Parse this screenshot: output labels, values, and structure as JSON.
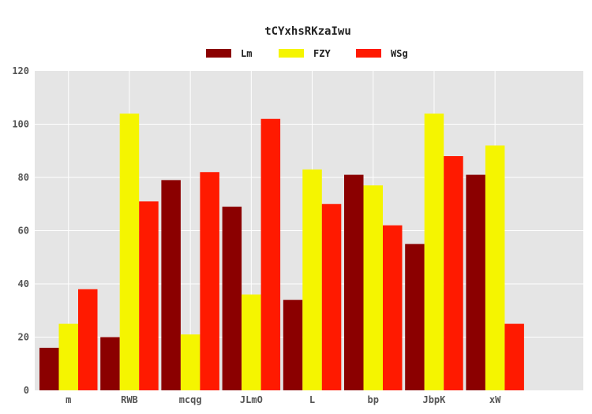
{
  "chart_data": {
    "type": "bar",
    "title": "tCYxhsRKzaIwu",
    "xlabel": "",
    "ylabel": "",
    "categories": [
      "m",
      "RWB",
      "mcqg",
      "JLmO",
      "L",
      "bp",
      "JbpK",
      "xW"
    ],
    "series": [
      {
        "name": "Lm",
        "color": "#8b0000",
        "values": [
          16,
          20,
          79,
          69,
          34,
          81,
          55,
          81
        ]
      },
      {
        "name": "FZY",
        "color": "#f5f500",
        "values": [
          25,
          104,
          21,
          36,
          83,
          77,
          104,
          92
        ]
      },
      {
        "name": "WSg",
        "color": "#ff1a00",
        "values": [
          38,
          71,
          82,
          102,
          70,
          62,
          88,
          25
        ]
      }
    ],
    "ylim": [
      0,
      120
    ],
    "yticks": [
      0,
      20,
      40,
      60,
      80,
      100,
      120
    ],
    "grid": true,
    "legend_position": "top-center",
    "background": "#e5e5e5"
  }
}
